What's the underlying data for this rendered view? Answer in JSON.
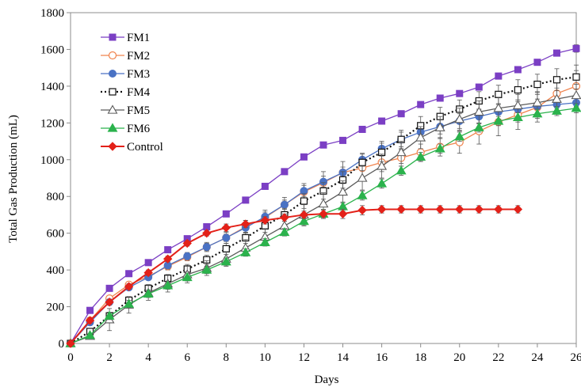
{
  "chart_data": {
    "type": "line",
    "xlabel": "Days",
    "ylabel": "Total Gas Production (mL)",
    "xlim": [
      0,
      26
    ],
    "ylim": [
      0,
      1800
    ],
    "x_ticks": [
      0,
      2,
      4,
      6,
      8,
      10,
      12,
      14,
      16,
      18,
      20,
      22,
      24,
      26
    ],
    "y_ticks": [
      0,
      200,
      400,
      600,
      800,
      1000,
      1200,
      1400,
      1600,
      1800
    ],
    "grid": false,
    "legend_position": "top-left",
    "series": [
      {
        "name": "FM1",
        "color": "#7b3fc4",
        "marker": "square-filled",
        "dash": "solid",
        "x": [
          0,
          1,
          2,
          3,
          4,
          5,
          6,
          7,
          8,
          9,
          10,
          11,
          12,
          13,
          14,
          15,
          16,
          17,
          18,
          19,
          20,
          21,
          22,
          23,
          24,
          25,
          26
        ],
        "values": [
          0,
          180,
          300,
          380,
          440,
          510,
          570,
          635,
          705,
          780,
          855,
          935,
          1015,
          1080,
          1105,
          1165,
          1210,
          1250,
          1300,
          1335,
          1360,
          1395,
          1455,
          1490,
          1530,
          1580,
          1605
        ],
        "errors": [
          0,
          15,
          15,
          15,
          15,
          15,
          15,
          15,
          15,
          15,
          15,
          15,
          15,
          15,
          15,
          15,
          15,
          15,
          15,
          15,
          15,
          15,
          15,
          15,
          15,
          15,
          20
        ]
      },
      {
        "name": "FM2",
        "color": "#f0834d",
        "marker": "circle-open",
        "dash": "solid",
        "x": [
          0,
          1,
          2,
          3,
          4,
          5,
          6,
          7,
          8,
          9,
          10,
          11,
          12,
          13,
          14,
          15,
          16,
          17,
          18,
          19,
          20,
          21,
          22,
          23,
          24,
          25,
          26
        ],
        "values": [
          0,
          125,
          245,
          320,
          365,
          420,
          470,
          525,
          575,
          635,
          685,
          755,
          825,
          875,
          930,
          955,
          985,
          1010,
          1040,
          1070,
          1095,
          1155,
          1205,
          1245,
          1285,
          1360,
          1400
        ],
        "errors": [
          0,
          15,
          15,
          15,
          15,
          20,
          20,
          25,
          30,
          35,
          40,
          40,
          45,
          60,
          60,
          50,
          50,
          45,
          45,
          50,
          60,
          70,
          75,
          80,
          80,
          80,
          85
        ]
      },
      {
        "name": "FM3",
        "color": "#4a72c4",
        "marker": "circle-filled",
        "dash": "solid",
        "x": [
          0,
          1,
          2,
          3,
          4,
          5,
          6,
          7,
          8,
          9,
          10,
          11,
          12,
          13,
          14,
          15,
          16,
          17,
          18,
          19,
          20,
          21,
          22,
          23,
          24,
          25,
          26
        ],
        "values": [
          0,
          115,
          225,
          305,
          360,
          425,
          475,
          525,
          575,
          630,
          690,
          755,
          830,
          880,
          930,
          1000,
          1060,
          1110,
          1150,
          1180,
          1210,
          1235,
          1260,
          1275,
          1290,
          1300,
          1310
        ],
        "errors": [
          0,
          15,
          15,
          15,
          15,
          20,
          20,
          20,
          20,
          25,
          25,
          25,
          30,
          30,
          30,
          35,
          40,
          40,
          40,
          40,
          40,
          40,
          40,
          40,
          40,
          40,
          40
        ]
      },
      {
        "name": "FM4",
        "color": "#111111",
        "marker": "square-open",
        "dash": "dotted",
        "x": [
          0,
          1,
          2,
          3,
          4,
          5,
          6,
          7,
          8,
          9,
          10,
          11,
          12,
          13,
          14,
          15,
          16,
          17,
          18,
          19,
          20,
          21,
          22,
          23,
          24,
          25,
          26
        ],
        "values": [
          0,
          65,
          150,
          235,
          300,
          355,
          405,
          455,
          515,
          575,
          640,
          700,
          775,
          830,
          890,
          985,
          1040,
          1110,
          1185,
          1235,
          1275,
          1320,
          1355,
          1380,
          1410,
          1435,
          1450
        ],
        "errors": [
          0,
          10,
          15,
          15,
          20,
          20,
          25,
          25,
          30,
          30,
          35,
          35,
          40,
          45,
          45,
          45,
          50,
          50,
          50,
          50,
          50,
          50,
          50,
          55,
          55,
          60,
          65
        ]
      },
      {
        "name": "FM5",
        "color": "#5a5a5a",
        "marker": "triangle-open",
        "dash": "solid",
        "x": [
          0,
          1,
          2,
          3,
          4,
          5,
          6,
          7,
          8,
          9,
          10,
          11,
          12,
          13,
          14,
          15,
          16,
          17,
          18,
          19,
          20,
          21,
          22,
          23,
          24,
          25,
          26
        ],
        "values": [
          0,
          40,
          130,
          210,
          275,
          325,
          375,
          410,
          460,
          520,
          580,
          640,
          700,
          760,
          825,
          900,
          965,
          1040,
          1120,
          1175,
          1220,
          1260,
          1280,
          1295,
          1310,
          1330,
          1350
        ],
        "errors": [
          0,
          10,
          60,
          45,
          40,
          45,
          45,
          40,
          40,
          45,
          45,
          50,
          55,
          60,
          60,
          65,
          65,
          60,
          60,
          60,
          60,
          60,
          60,
          60,
          60,
          60,
          60
        ]
      },
      {
        "name": "FM6",
        "color": "#2bb24c",
        "marker": "triangle-filled",
        "dash": "solid",
        "x": [
          0,
          1,
          2,
          3,
          4,
          5,
          6,
          7,
          8,
          9,
          10,
          11,
          12,
          13,
          14,
          15,
          16,
          17,
          18,
          19,
          20,
          21,
          22,
          23,
          24,
          25,
          26
        ],
        "values": [
          0,
          45,
          150,
          215,
          270,
          315,
          360,
          400,
          445,
          495,
          550,
          605,
          665,
          705,
          745,
          805,
          870,
          940,
          1015,
          1060,
          1125,
          1175,
          1210,
          1230,
          1250,
          1265,
          1280
        ],
        "errors": [
          0,
          10,
          20,
          20,
          20,
          20,
          20,
          20,
          20,
          20,
          20,
          20,
          25,
          25,
          25,
          25,
          25,
          25,
          25,
          25,
          25,
          25,
          25,
          25,
          25,
          25,
          25
        ]
      },
      {
        "name": "Control",
        "color": "#e32119",
        "marker": "diamond-filled",
        "dash": "solid",
        "x": [
          0,
          1,
          2,
          3,
          4,
          5,
          6,
          7,
          8,
          9,
          10,
          11,
          12,
          13,
          14,
          15,
          16,
          17,
          18,
          19,
          20,
          21,
          22,
          23
        ],
        "values": [
          0,
          125,
          225,
          310,
          385,
          460,
          545,
          600,
          630,
          650,
          670,
          685,
          700,
          705,
          705,
          725,
          730,
          730,
          730,
          730,
          730,
          730,
          730,
          730
        ],
        "errors": [
          0,
          15,
          15,
          15,
          15,
          15,
          15,
          15,
          20,
          20,
          20,
          20,
          20,
          20,
          25,
          25,
          20,
          20,
          20,
          20,
          20,
          20,
          20,
          20
        ]
      }
    ]
  }
}
